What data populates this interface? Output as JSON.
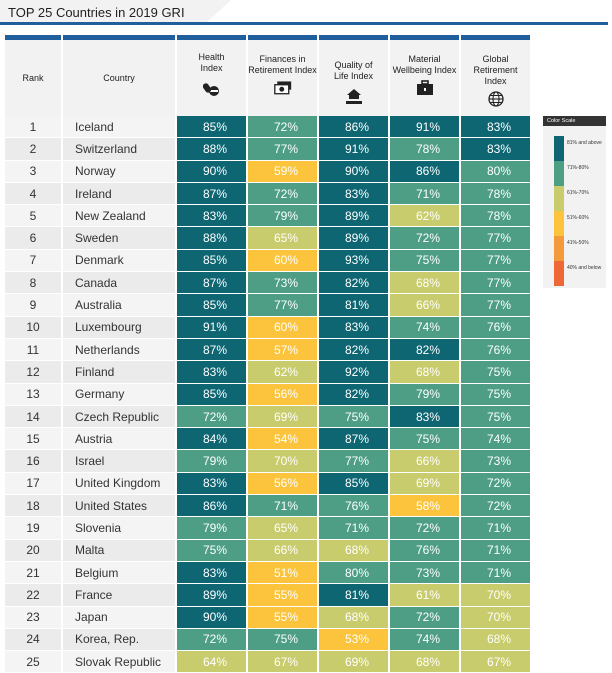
{
  "title": "TOP 25 Countries in 2019 GRI",
  "colors": {
    "81_and_above": "#0e6673",
    "71_80": "#4e9e86",
    "61_70": "#c8cc6c",
    "51_60": "#fbc43c",
    "41_50": "#f39b3b",
    "40_and_below": "#ed6737",
    "accent": "#1f5f9e"
  },
  "headers": {
    "rank": "Rank",
    "country": "Country",
    "health": "Health Index",
    "finances": "Finances in Retirement Index",
    "quality": "Quality of Life Index",
    "material": "Material Wellbeing Index",
    "global": "Global Retirement Index"
  },
  "header_icons": {
    "health": "pills-icon",
    "finances": "money-stack-icon",
    "quality": "house-hand-icon",
    "material": "briefcase-icon",
    "global": "globe-icon"
  },
  "legend": {
    "title": "Color Scale",
    "items": [
      {
        "label": "81% and above",
        "color": "#0e6673"
      },
      {
        "label": "71%-80%",
        "color": "#4e9e86"
      },
      {
        "label": "61%-70%",
        "color": "#c8cc6c"
      },
      {
        "label": "51%-60%",
        "color": "#fbc43c"
      },
      {
        "label": "41%-50%",
        "color": "#f39b3b"
      },
      {
        "label": "40% and below",
        "color": "#ed6737"
      }
    ]
  },
  "chart_data": {
    "type": "table",
    "title": "TOP 25 Countries in 2019 GRI",
    "columns": [
      "Rank",
      "Country",
      "Health Index",
      "Finances in Retirement Index",
      "Quality of Life Index",
      "Material Wellbeing Index",
      "Global Retirement Index"
    ],
    "rows": [
      [
        1,
        "Iceland",
        "85%",
        "72%",
        "86%",
        "91%",
        "83%"
      ],
      [
        2,
        "Switzerland",
        "88%",
        "77%",
        "91%",
        "78%",
        "83%"
      ],
      [
        3,
        "Norway",
        "90%",
        "59%",
        "90%",
        "86%",
        "80%"
      ],
      [
        4,
        "Ireland",
        "87%",
        "72%",
        "83%",
        "71%",
        "78%"
      ],
      [
        5,
        "New Zealand",
        "83%",
        "79%",
        "89%",
        "62%",
        "78%"
      ],
      [
        6,
        "Sweden",
        "88%",
        "65%",
        "89%",
        "72%",
        "77%"
      ],
      [
        7,
        "Denmark",
        "85%",
        "60%",
        "93%",
        "75%",
        "77%"
      ],
      [
        8,
        "Canada",
        "87%",
        "73%",
        "82%",
        "68%",
        "77%"
      ],
      [
        9,
        "Australia",
        "85%",
        "77%",
        "81%",
        "66%",
        "77%"
      ],
      [
        10,
        "Luxembourg",
        "91%",
        "60%",
        "83%",
        "74%",
        "76%"
      ],
      [
        11,
        "Netherlands",
        "87%",
        "57%",
        "82%",
        "82%",
        "76%"
      ],
      [
        12,
        "Finland",
        "83%",
        "62%",
        "92%",
        "68%",
        "75%"
      ],
      [
        13,
        "Germany",
        "85%",
        "56%",
        "82%",
        "79%",
        "75%"
      ],
      [
        14,
        "Czech Republic",
        "72%",
        "69%",
        "75%",
        "83%",
        "75%"
      ],
      [
        15,
        "Austria",
        "84%",
        "54%",
        "87%",
        "75%",
        "74%"
      ],
      [
        16,
        "Israel",
        "79%",
        "70%",
        "77%",
        "66%",
        "73%"
      ],
      [
        17,
        "United Kingdom",
        "83%",
        "56%",
        "85%",
        "69%",
        "72%"
      ],
      [
        18,
        "United States",
        "86%",
        "71%",
        "76%",
        "58%",
        "72%"
      ],
      [
        19,
        "Slovenia",
        "79%",
        "65%",
        "71%",
        "72%",
        "71%"
      ],
      [
        20,
        "Malta",
        "75%",
        "66%",
        "68%",
        "76%",
        "71%"
      ],
      [
        21,
        "Belgium",
        "83%",
        "51%",
        "80%",
        "73%",
        "71%"
      ],
      [
        22,
        "France",
        "89%",
        "55%",
        "81%",
        "61%",
        "70%"
      ],
      [
        23,
        "Japan",
        "90%",
        "55%",
        "68%",
        "72%",
        "70%"
      ],
      [
        24,
        "Korea, Rep.",
        "72%",
        "75%",
        "53%",
        "74%",
        "68%"
      ],
      [
        25,
        "Slovak Republic",
        "64%",
        "67%",
        "69%",
        "68%",
        "67%"
      ]
    ]
  }
}
